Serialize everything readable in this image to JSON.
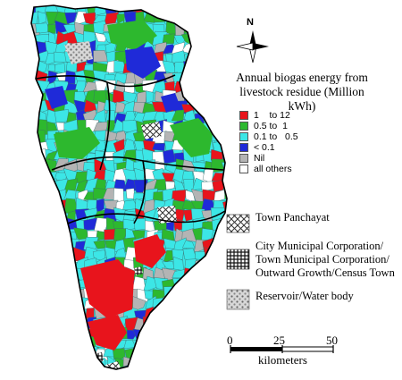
{
  "north_label": "N",
  "legend": {
    "title_line1": "Annual biogas energy from",
    "title_line2": "livestock residue (Million kWh)",
    "classes": [
      {
        "label": "1    to 12",
        "color": "#e8141c"
      },
      {
        "label": "0.5 to  1",
        "color": "#2db82e"
      },
      {
        "label": "0.1 to   0.5",
        "color": "#3ce6e6"
      },
      {
        "label": "< 0.1",
        "color": "#1f2ad8"
      },
      {
        "label": "Nil",
        "color": "#b4b4b4"
      },
      {
        "label": "all others",
        "color": "#ffffff"
      }
    ]
  },
  "symbols": {
    "town_panchayat": "Town Panchayat",
    "city_line1": "City Municipal Corporation/",
    "city_line2": "Town Municipal Corporation/",
    "city_line3": "Outward Growth/Census Town",
    "reservoir": "Reservoir/Water body"
  },
  "scale_bar": {
    "ticks": [
      "0",
      "25",
      "50"
    ],
    "unit": "kilometers"
  }
}
